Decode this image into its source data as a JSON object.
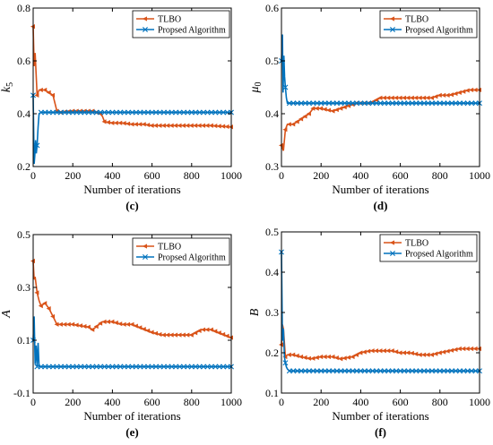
{
  "colors": {
    "tlbo": "#D95319",
    "proposed": "#0072BD",
    "axis": "#000000"
  },
  "chart_data": [
    {
      "type": "line",
      "label": "(c)",
      "ylabel_main": "k",
      "ylabel_sub": "5",
      "xlabel": "Number of iterations",
      "xlim": [
        0,
        1000
      ],
      "ylim": [
        0.2,
        0.8
      ],
      "xticks": [
        "0",
        "200",
        "400",
        "600",
        "800",
        "1000"
      ],
      "yticks": [
        "0.2",
        "0.4",
        "0.6",
        "0.8"
      ],
      "legend": "top-right",
      "series": [
        {
          "name": "TLBO",
          "x": [
            0,
            5,
            10,
            20,
            30,
            60,
            100,
            120,
            140,
            200,
            300,
            340,
            350,
            360,
            400,
            450,
            500,
            560,
            600,
            700,
            800,
            900,
            1000
          ],
          "y": [
            0.73,
            0.58,
            0.63,
            0.47,
            0.49,
            0.49,
            0.47,
            0.41,
            0.405,
            0.41,
            0.41,
            0.4,
            0.39,
            0.37,
            0.365,
            0.365,
            0.36,
            0.36,
            0.355,
            0.355,
            0.355,
            0.355,
            0.35
          ]
        },
        {
          "name": "Propsed Algorithm",
          "x": [
            0,
            5,
            8,
            12,
            16,
            20,
            25,
            30,
            40,
            60,
            100,
            200,
            300,
            400,
            500,
            600,
            700,
            800,
            900,
            1000
          ],
          "y": [
            0.47,
            0.21,
            0.24,
            0.3,
            0.25,
            0.28,
            0.35,
            0.4,
            0.405,
            0.405,
            0.405,
            0.405,
            0.405,
            0.405,
            0.405,
            0.405,
            0.405,
            0.405,
            0.405,
            0.405
          ]
        }
      ]
    },
    {
      "type": "line",
      "label": "(d)",
      "ylabel_main": "μ",
      "ylabel_sub": "0",
      "xlabel": "Number of iterations",
      "xlim": [
        0,
        1000
      ],
      "ylim": [
        0.3,
        0.6
      ],
      "xticks": [
        "0",
        "200",
        "400",
        "600",
        "800",
        "1000"
      ],
      "yticks": [
        "0.3",
        "0.4",
        "0.5",
        "0.6"
      ],
      "legend": "top-right",
      "series": [
        {
          "name": "TLBO",
          "x": [
            0,
            10,
            20,
            30,
            60,
            100,
            140,
            160,
            200,
            260,
            300,
            340,
            380,
            400,
            450,
            500,
            560,
            600,
            700,
            760,
            800,
            850,
            900,
            950,
            1000
          ],
          "y": [
            0.34,
            0.33,
            0.37,
            0.38,
            0.38,
            0.39,
            0.4,
            0.41,
            0.41,
            0.405,
            0.41,
            0.415,
            0.42,
            0.42,
            0.42,
            0.43,
            0.43,
            0.43,
            0.43,
            0.43,
            0.435,
            0.435,
            0.44,
            0.445,
            0.445
          ]
        },
        {
          "name": "Propsed Algorithm",
          "x": [
            0,
            5,
            8,
            12,
            16,
            20,
            25,
            30,
            40,
            60,
            100,
            200,
            300,
            400,
            500,
            600,
            700,
            800,
            900,
            1000
          ],
          "y": [
            0.5,
            0.55,
            0.44,
            0.51,
            0.47,
            0.45,
            0.43,
            0.42,
            0.42,
            0.42,
            0.42,
            0.42,
            0.42,
            0.42,
            0.42,
            0.42,
            0.42,
            0.42,
            0.42,
            0.42
          ]
        }
      ]
    },
    {
      "type": "line",
      "label": "(e)",
      "ylabel_main": "A",
      "ylabel_sub": "",
      "xlabel": "Number of iterations",
      "xlim": [
        0,
        1000
      ],
      "ylim": [
        -0.1,
        0.5
      ],
      "xticks": [
        "0",
        "200",
        "400",
        "600",
        "800",
        "1000"
      ],
      "yticks": [
        "-0.1",
        "0.1",
        "0.3",
        "0.5"
      ],
      "legend": "top-right",
      "series": [
        {
          "name": "TLBO",
          "x": [
            0,
            5,
            10,
            20,
            30,
            40,
            60,
            80,
            100,
            120,
            150,
            200,
            280,
            300,
            350,
            400,
            450,
            500,
            600,
            650,
            700,
            800,
            850,
            900,
            1000
          ],
          "y": [
            0.4,
            0.33,
            0.34,
            0.28,
            0.25,
            0.23,
            0.24,
            0.22,
            0.19,
            0.16,
            0.16,
            0.16,
            0.15,
            0.14,
            0.17,
            0.17,
            0.16,
            0.16,
            0.13,
            0.12,
            0.12,
            0.12,
            0.14,
            0.14,
            0.11
          ]
        },
        {
          "name": "Propsed Algorithm",
          "x": [
            0,
            5,
            10,
            15,
            20,
            25,
            30,
            40,
            60,
            100,
            200,
            300,
            400,
            500,
            600,
            700,
            800,
            900,
            1000
          ],
          "y": [
            0.1,
            0.19,
            0.01,
            0.08,
            0.0,
            0.09,
            0.0,
            0.0,
            0.0,
            0.0,
            0.0,
            0.0,
            0.0,
            0.0,
            0.0,
            0.0,
            0.0,
            0.0,
            0.0
          ]
        }
      ]
    },
    {
      "type": "line",
      "label": "(f)",
      "ylabel_main": "B",
      "ylabel_sub": "",
      "xlabel": "Number of iterations",
      "xlim": [
        0,
        1000
      ],
      "ylim": [
        0.1,
        0.5
      ],
      "xticks": [
        "0",
        "200",
        "400",
        "600",
        "800",
        "1000"
      ],
      "yticks": [
        "0.1",
        "0.2",
        "0.3",
        "0.4",
        "0.5"
      ],
      "legend": "top-right",
      "series": [
        {
          "name": "TLBO",
          "x": [
            0,
            5,
            10,
            20,
            30,
            60,
            100,
            150,
            200,
            260,
            300,
            360,
            400,
            450,
            500,
            560,
            600,
            650,
            700,
            760,
            800,
            850,
            900,
            950,
            1000
          ],
          "y": [
            0.22,
            0.27,
            0.26,
            0.19,
            0.195,
            0.195,
            0.19,
            0.185,
            0.19,
            0.19,
            0.185,
            0.19,
            0.2,
            0.205,
            0.205,
            0.205,
            0.2,
            0.2,
            0.195,
            0.195,
            0.2,
            0.205,
            0.21,
            0.21,
            0.21
          ]
        },
        {
          "name": "Propsed Algorithm",
          "x": [
            0,
            5,
            10,
            15,
            20,
            25,
            30,
            40,
            60,
            100,
            200,
            300,
            400,
            500,
            600,
            700,
            800,
            900,
            1000
          ],
          "y": [
            0.45,
            0.23,
            0.26,
            0.19,
            0.175,
            0.165,
            0.16,
            0.155,
            0.155,
            0.155,
            0.155,
            0.155,
            0.155,
            0.155,
            0.155,
            0.155,
            0.155,
            0.155,
            0.155
          ]
        }
      ]
    }
  ]
}
